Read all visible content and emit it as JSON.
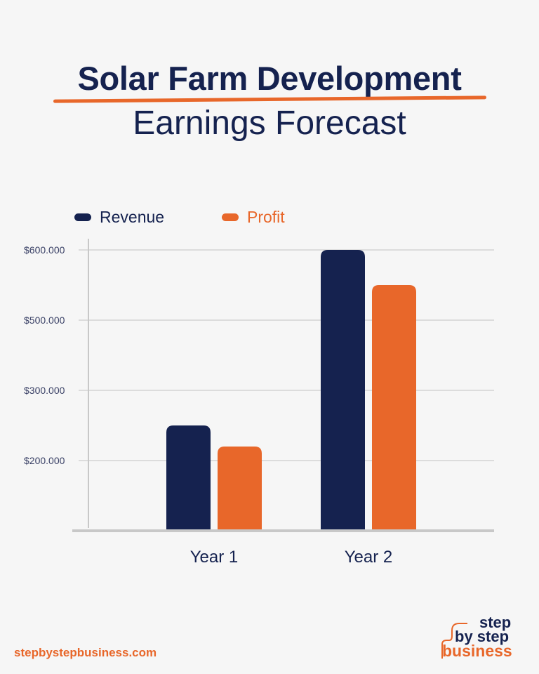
{
  "title": "Solar Farm Development",
  "subtitle": "Earnings Forecast",
  "footer": "stepbystepbusiness.com",
  "logo": {
    "line1": "step",
    "line2": "by step",
    "line3": "business"
  },
  "colors": {
    "revenue": "#15224f",
    "profit": "#e8672a",
    "grid": "#d4d4d4",
    "axis": "#c8c8c8"
  },
  "chart_data": {
    "type": "bar",
    "categories": [
      "Year 1",
      "Year 2"
    ],
    "series": [
      {
        "name": "Revenue",
        "values": [
          250000,
          600000
        ]
      },
      {
        "name": "Profit",
        "values": [
          220000,
          550000
        ]
      }
    ],
    "yticks": [
      {
        "value": 200000,
        "label": "$200.000"
      },
      {
        "value": 300000,
        "label": "$300.000"
      },
      {
        "value": 500000,
        "label": "$500.000"
      },
      {
        "value": 600000,
        "label": "$600.000"
      }
    ],
    "legend": "top-left",
    "grid": true
  }
}
